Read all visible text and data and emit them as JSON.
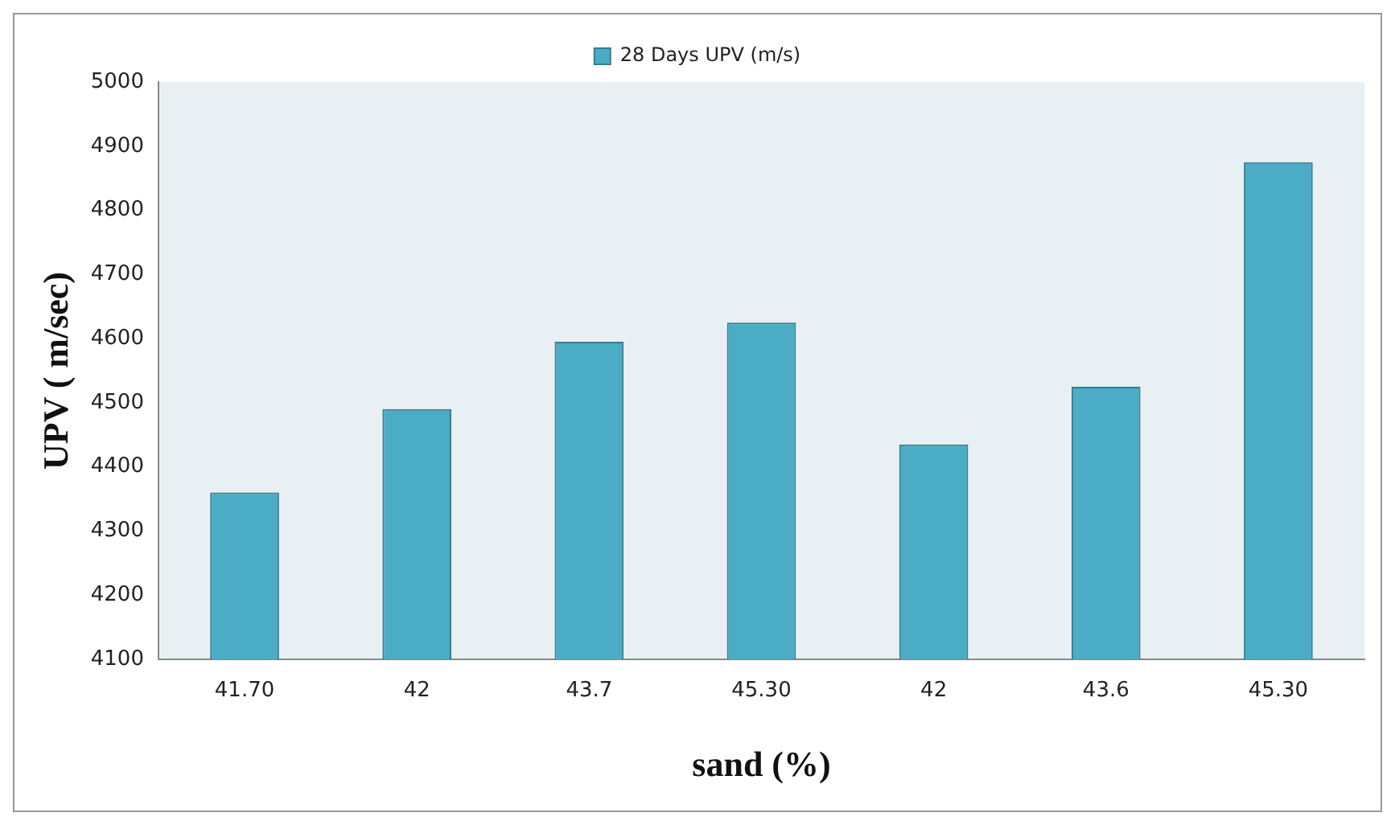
{
  "chart_data": {
    "type": "bar",
    "xlabel": "sand (%)",
    "ylabel": "UPV ( m/sec)",
    "categories": [
      "41.70",
      "42",
      "43.7",
      "45.30",
      "42",
      "43.6",
      "45.30"
    ],
    "series": [
      {
        "name": "28 Days UPV (m/s)",
        "color": "#4bacc6",
        "values": [
          4360,
          4490,
          4595,
          4625,
          4435,
          4525,
          4875
        ]
      }
    ],
    "ylim": [
      4100,
      5000
    ],
    "yticks": [
      4100,
      4200,
      4300,
      4400,
      4500,
      4600,
      4700,
      4800,
      4900,
      5000
    ],
    "grid": false,
    "legend": "top"
  }
}
